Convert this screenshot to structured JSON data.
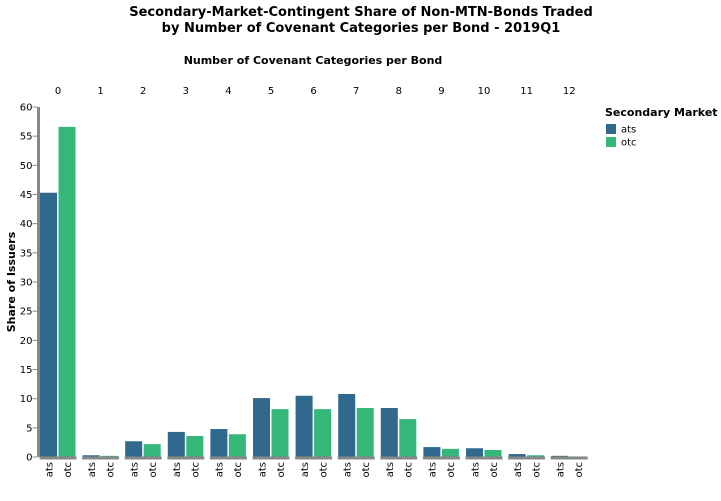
{
  "chart_data": {
    "type": "bar",
    "title": [
      "Secondary-Market-Contingent Share of Non-MTN-Bonds Traded",
      "by Number of Covenant Categories per Bond - 2019Q1"
    ],
    "column_title": "Number of Covenant Categories per Bond",
    "y_label": "Share of Issuers",
    "legend_title": "Secondary Market",
    "categories": [
      "0",
      "1",
      "2",
      "3",
      "4",
      "5",
      "6",
      "7",
      "8",
      "9",
      "10",
      "11",
      "12"
    ],
    "series": [
      {
        "name": "ats",
        "color": "#31688e",
        "values": [
          45.3,
          0.3,
          2.7,
          4.3,
          4.8,
          10.1,
          10.5,
          10.8,
          8.4,
          1.7,
          1.5,
          0.5,
          0.2
        ]
      },
      {
        "name": "otc",
        "color": "#35b779",
        "values": [
          56.6,
          0.2,
          2.2,
          3.6,
          3.9,
          8.2,
          8.2,
          8.4,
          6.5,
          1.4,
          1.2,
          0.3,
          0.1
        ]
      }
    ],
    "ylim": [
      0,
      60
    ],
    "yticks": [
      0,
      5,
      10,
      15,
      20,
      25,
      30,
      35,
      40,
      45,
      50,
      55,
      60
    ],
    "grid": false,
    "legend": "right"
  }
}
